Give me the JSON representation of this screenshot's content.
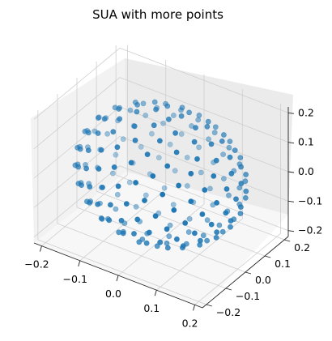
{
  "chart_data": {
    "type": "scatter",
    "title": "SUA with more points",
    "xlabel": "",
    "ylabel": "",
    "zlabel": "",
    "xlim": [
      -0.22,
      0.22
    ],
    "ylim": [
      -0.22,
      0.22
    ],
    "zlim": [
      -0.22,
      0.22
    ],
    "x_ticks": [
      "−0.2",
      "−0.1",
      "0.0",
      "0.1",
      "0.2"
    ],
    "y_ticks": [
      "−0.2",
      "−0.1",
      "0.0",
      "0.1",
      "0.2"
    ],
    "z_ticks": [
      "−0.2",
      "−0.1",
      "0.0",
      "0.1",
      "0.2"
    ],
    "grid": true,
    "marker_color": "#1f77b4",
    "sphere": {
      "radius": 0.2,
      "n_points": 200
    }
  }
}
